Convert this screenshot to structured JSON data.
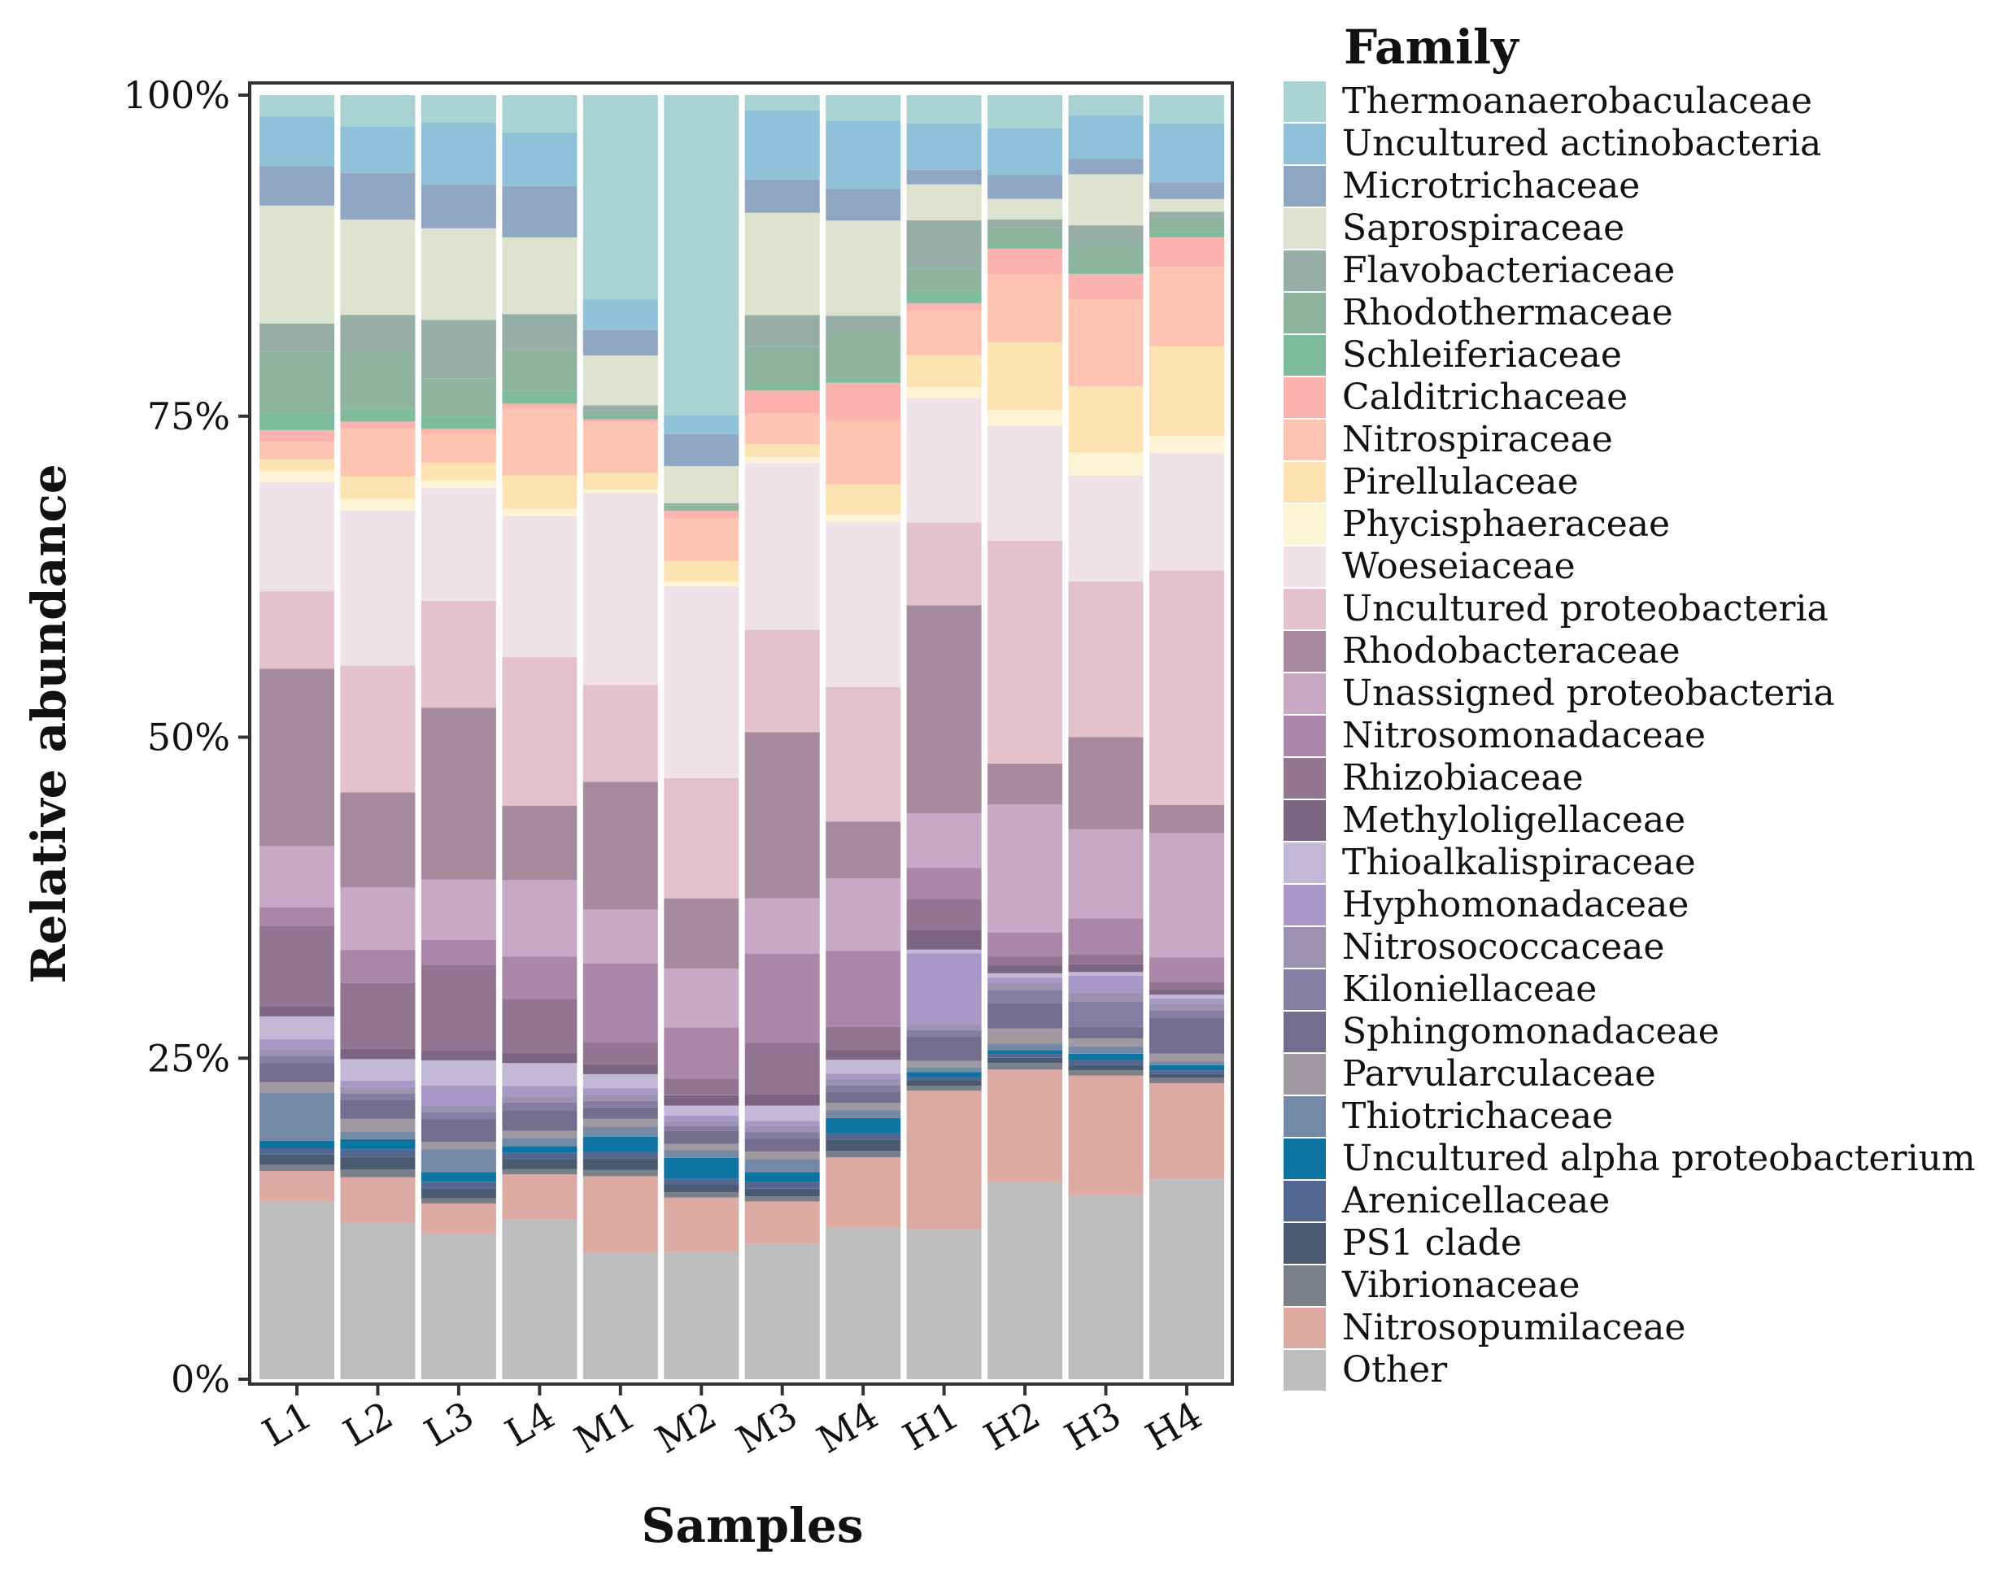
{
  "chart_data": {
    "type": "bar",
    "stacked": true,
    "title": "",
    "xlabel": "Samples",
    "ylabel": "Relative abundance",
    "ylim": [
      0,
      100
    ],
    "yticks": [
      0,
      25,
      50,
      75,
      100
    ],
    "ytick_labels": [
      "0%",
      "25%",
      "50%",
      "75%",
      "100%"
    ],
    "legend_title": "Family",
    "legend_position": "right",
    "categories": [
      "L1",
      "L2",
      "L3",
      "L4",
      "M1",
      "M2",
      "M3",
      "M4",
      "H1",
      "H2",
      "H3",
      "H4"
    ],
    "series": [
      {
        "name": "Other",
        "color": "#BDBDBD",
        "values": [
          14.0,
          12.3,
          11.6,
          12.5,
          9.9,
          10.0,
          10.6,
          12.0,
          12.1,
          15.4,
          14.4,
          15.6
        ]
      },
      {
        "name": "Nitrosopumilaceae",
        "color": "#DCAAA2",
        "values": [
          2.4,
          3.6,
          2.4,
          3.5,
          6.0,
          4.2,
          3.3,
          5.5,
          11.2,
          8.8,
          9.4,
          7.5
        ]
      },
      {
        "name": "Vibrionaceae",
        "color": "#7B8088",
        "values": [
          0.5,
          0.6,
          0.4,
          0.4,
          0.5,
          0.4,
          0.4,
          0.5,
          0.4,
          0.5,
          0.4,
          0.4
        ]
      },
      {
        "name": "PS1 clade",
        "color": "#4A5A70",
        "values": [
          0.8,
          1.0,
          0.8,
          0.8,
          0.9,
          0.6,
          0.6,
          0.9,
          0.4,
          0.4,
          0.4,
          0.3
        ]
      },
      {
        "name": "Arenicellaceae",
        "color": "#536690",
        "values": [
          0.5,
          0.6,
          0.5,
          0.5,
          0.5,
          0.5,
          0.5,
          0.5,
          0.3,
          0.3,
          0.4,
          0.3
        ]
      },
      {
        "name": "Uncultured alpha proteobacterium",
        "color": "#0D73A0",
        "values": [
          0.6,
          0.8,
          0.8,
          0.5,
          1.2,
          1.6,
          0.8,
          1.2,
          0.4,
          0.3,
          0.5,
          0.4
        ]
      },
      {
        "name": "Thiotrichaceae",
        "color": "#7389A6",
        "values": [
          3.8,
          0.6,
          1.8,
          0.6,
          0.8,
          0.6,
          1.0,
          0.6,
          0.4,
          0.5,
          0.6,
          0.3
        ]
      },
      {
        "name": "Parvularculaceae",
        "color": "#A09AA0",
        "values": [
          0.8,
          1.0,
          0.6,
          0.6,
          0.6,
          0.5,
          0.6,
          0.6,
          0.5,
          1.2,
          0.6,
          0.6
        ]
      },
      {
        "name": "Sphingomonadaceae",
        "color": "#736D8E",
        "values": [
          1.5,
          1.5,
          1.8,
          1.6,
          0.9,
          1.0,
          1.0,
          0.9,
          2.0,
          2.0,
          0.9,
          2.8
        ]
      },
      {
        "name": "Kiloniellaceae",
        "color": "#847EA3",
        "values": [
          0.6,
          0.5,
          0.6,
          0.6,
          0.5,
          0.4,
          0.5,
          0.5,
          0.5,
          1.0,
          2.0,
          0.6
        ]
      },
      {
        "name": "Nitrosococcaceae",
        "color": "#9C93B0",
        "values": [
          0.5,
          0.5,
          0.5,
          0.5,
          0.5,
          0.4,
          0.5,
          0.5,
          0.4,
          0.5,
          0.7,
          0.5
        ]
      },
      {
        "name": "Hyphomonadaceae",
        "color": "#A898C8",
        "values": [
          0.8,
          0.5,
          1.6,
          0.8,
          0.5,
          0.4,
          0.4,
          0.4,
          5.8,
          0.5,
          1.3,
          0.4
        ]
      },
      {
        "name": "Thioalkalispiraceae",
        "color": "#C2B9D6",
        "values": [
          1.8,
          1.7,
          2.0,
          1.8,
          1.1,
          0.8,
          1.2,
          1.1,
          0.3,
          0.3,
          0.3,
          0.3
        ]
      },
      {
        "name": "Methyloligellaceae",
        "color": "#7C6580",
        "values": [
          0.8,
          0.8,
          0.8,
          0.8,
          0.8,
          0.8,
          0.9,
          0.8,
          1.6,
          0.6,
          0.6,
          0.4
        ]
      },
      {
        "name": "Rhizobiaceae",
        "color": "#927691",
        "values": [
          6.3,
          5.2,
          6.8,
          4.2,
          1.7,
          1.3,
          4.0,
          1.8,
          2.5,
          0.7,
          0.8,
          0.6
        ]
      },
      {
        "name": "Nitrosomonadaceae",
        "color": "#AA86A8",
        "values": [
          1.5,
          2.6,
          2.0,
          3.3,
          6.2,
          4.0,
          7.0,
          6.0,
          2.5,
          1.9,
          2.8,
          1.9
        ]
      },
      {
        "name": "Unassigned proteobacteria",
        "color": "#C7A9C5",
        "values": [
          4.8,
          4.9,
          4.8,
          6.0,
          4.2,
          4.6,
          4.3,
          5.7,
          4.4,
          10.0,
          7.0,
          9.7
        ]
      },
      {
        "name": "Rhodobacteraceae",
        "color": "#A68A9E",
        "values": [
          14.0,
          7.5,
          13.7,
          5.8,
          10.0,
          5.5,
          13.0,
          4.5,
          16.8,
          3.2,
          7.2,
          2.2
        ]
      },
      {
        "name": "Uncultured proteobacteria",
        "color": "#E4C2CC",
        "values": [
          6.1,
          10.0,
          8.5,
          11.6,
          7.6,
          9.4,
          8.0,
          10.6,
          6.7,
          17.4,
          12.2,
          18.3
        ]
      },
      {
        "name": "Woeseiaceae",
        "color": "#EFE2E8",
        "values": [
          8.6,
          12.2,
          9.0,
          11.0,
          15.0,
          15.0,
          13.0,
          13.0,
          10.0,
          9.0,
          8.3,
          9.2
        ]
      },
      {
        "name": "Phycisphaeraceae",
        "color": "#FDF3D5",
        "values": [
          0.9,
          0.9,
          0.6,
          0.6,
          0.3,
          0.4,
          0.5,
          0.6,
          0.9,
          1.2,
          1.8,
          1.3
        ]
      },
      {
        "name": "Pirellulaceae",
        "color": "#FDE2B2",
        "values": [
          0.9,
          1.8,
          1.4,
          2.6,
          1.3,
          1.6,
          1.0,
          2.4,
          2.6,
          5.3,
          5.2,
          7.0
        ]
      },
      {
        "name": "Nitrospiraceae",
        "color": "#FDC5B1",
        "values": [
          1.4,
          3.7,
          2.3,
          5.2,
          4.0,
          3.3,
          2.4,
          5.0,
          3.6,
          5.3,
          6.8,
          6.2
        ]
      },
      {
        "name": "Calditrichaceae",
        "color": "#FCB3AF",
        "values": [
          0.9,
          0.6,
          0.4,
          0.4,
          0.2,
          0.6,
          1.8,
          3.0,
          0.6,
          2.0,
          2.0,
          2.3
        ]
      },
      {
        "name": "Schleiferiaceae",
        "color": "#7FBC9E",
        "values": [
          1.4,
          1.0,
          1.0,
          1.0,
          0.3,
          0.1,
          0.4,
          0.4,
          1.0,
          0.4,
          0.4,
          0.4
        ]
      },
      {
        "name": "Rhodothermaceae",
        "color": "#8EB39F",
        "values": [
          4.8,
          4.5,
          3.0,
          3.2,
          0.4,
          0.3,
          3.0,
          3.6,
          1.8,
          1.3,
          2.0,
          1.2
        ]
      },
      {
        "name": "Flavobacteriaceae",
        "color": "#97AEA7",
        "values": [
          2.2,
          2.9,
          4.7,
          2.8,
          0.4,
          0.2,
          2.5,
          1.3,
          3.9,
          0.6,
          1.4,
          0.4
        ]
      },
      {
        "name": "Saprospiraceae",
        "color": "#DEE3D0",
        "values": [
          9.3,
          7.5,
          7.3,
          6.0,
          3.9,
          2.9,
          8.0,
          7.5,
          2.9,
          1.6,
          4.0,
          1.0
        ]
      },
      {
        "name": "Microtrichaceae",
        "color": "#8FA7C3",
        "values": [
          3.1,
          3.7,
          3.5,
          4.0,
          2.0,
          2.5,
          2.6,
          2.5,
          1.2,
          1.9,
          1.2,
          1.3
        ]
      },
      {
        "name": "Uncultured actinobacteria",
        "color": "#8FC2D8",
        "values": [
          3.9,
          3.6,
          4.9,
          4.2,
          2.4,
          1.5,
          5.4,
          5.4,
          3.7,
          3.6,
          3.4,
          4.6
        ]
      },
      {
        "name": "Thermoanaerobaculaceae",
        "color": "#A9D3D2",
        "values": [
          1.7,
          2.5,
          2.2,
          2.9,
          16.0,
          25.0,
          1.2,
          2.0,
          2.3,
          2.6,
          1.6,
          2.2
        ]
      }
    ]
  }
}
